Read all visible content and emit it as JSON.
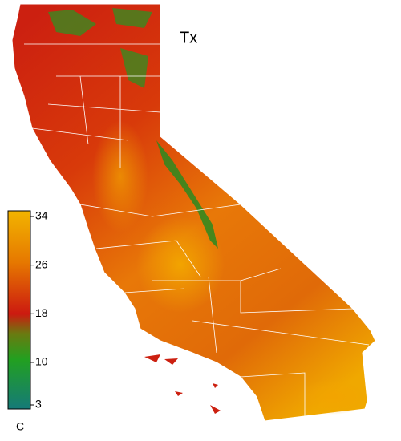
{
  "map": {
    "title": "Tx",
    "colorbar": {
      "label": "C",
      "lim": [
        3,
        34
      ],
      "ticks": [
        34,
        26,
        18,
        10,
        3
      ]
    }
  }
}
